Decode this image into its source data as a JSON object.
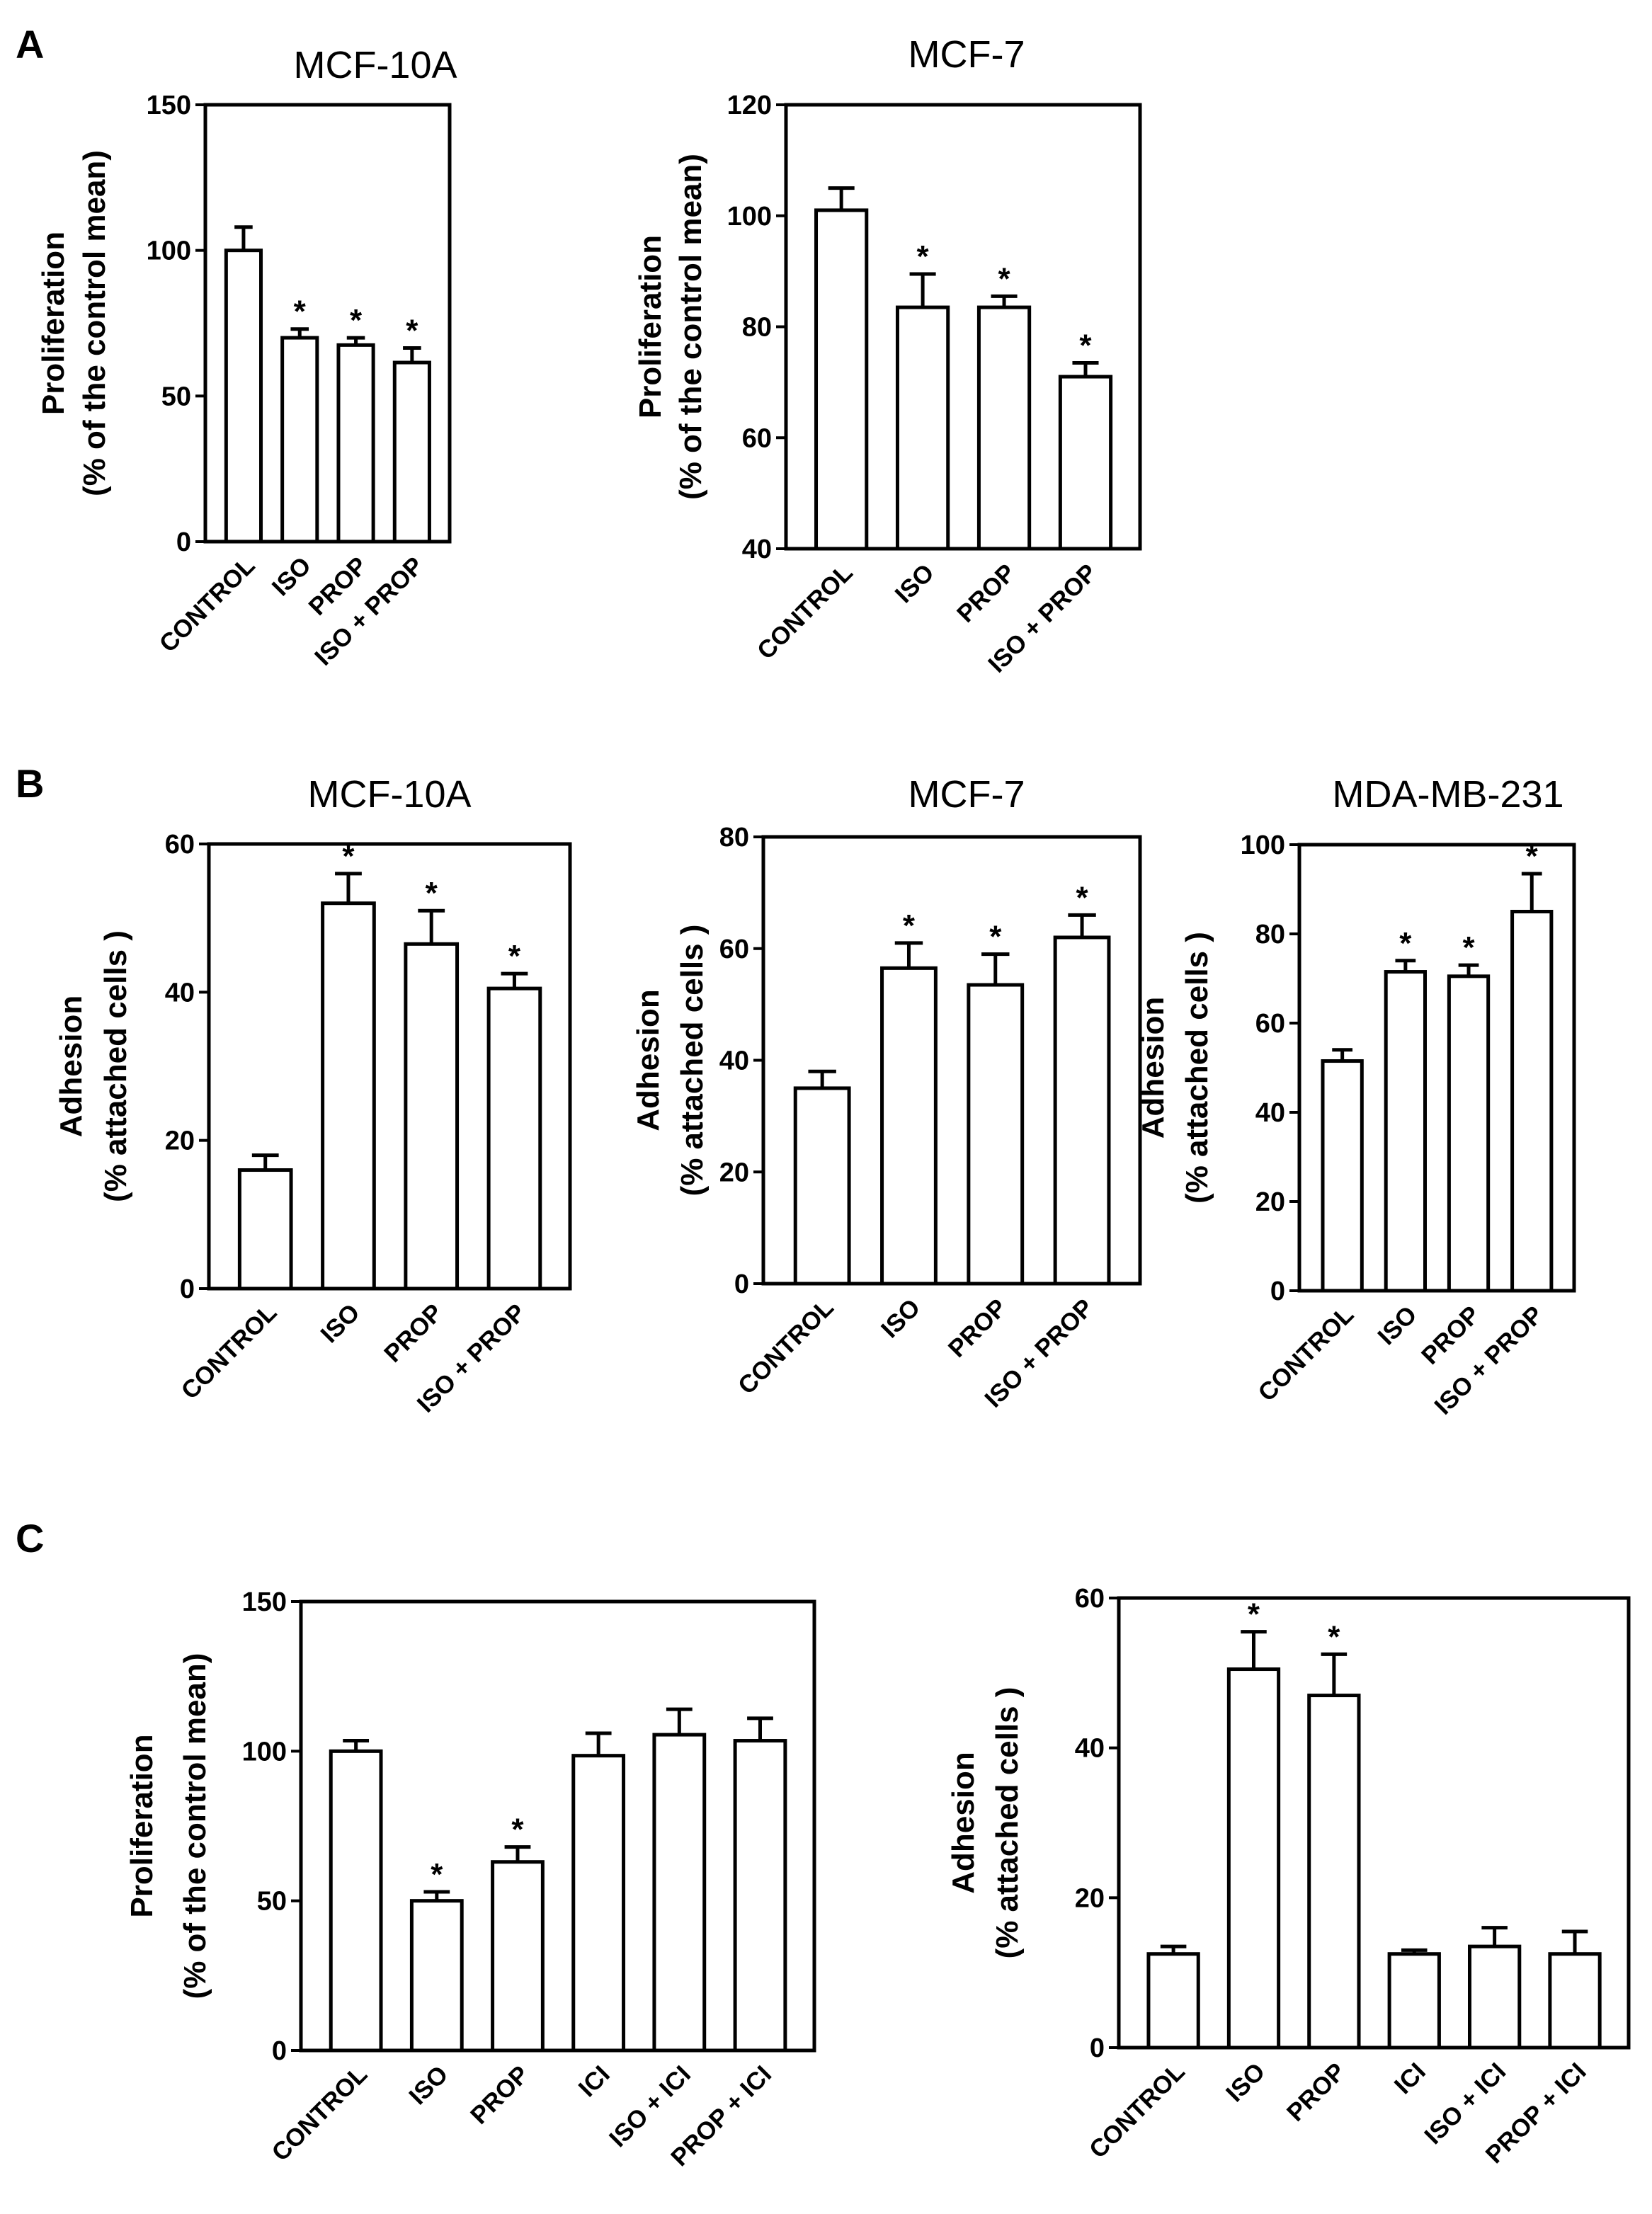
{
  "panels": [
    {
      "label": "A"
    },
    {
      "label": "B"
    },
    {
      "label": "C"
    }
  ],
  "chart_data": [
    {
      "type": "bar",
      "panel": "A",
      "title": "MCF-10A",
      "ylabel": [
        "Proliferation",
        "(% of the control mean)"
      ],
      "categories": [
        "CONTROL",
        "ISO",
        "PROP",
        "ISO + PROP"
      ],
      "values": [
        100,
        70,
        67.5,
        61.5
      ],
      "errors": [
        8,
        3,
        2.5,
        5
      ],
      "significant": [
        false,
        true,
        true,
        true
      ],
      "ylim": [
        0,
        150
      ],
      "yticks": [
        0,
        50,
        100,
        150
      ]
    },
    {
      "type": "bar",
      "panel": "A",
      "title": "MCF-7",
      "ylabel": [
        "Proliferation",
        "(% of the control mean)"
      ],
      "categories": [
        "CONTROL",
        "ISO",
        "PROP",
        "ISO + PROP"
      ],
      "values": [
        101,
        83.5,
        83.5,
        71
      ],
      "errors": [
        4,
        6,
        2,
        2.5
      ],
      "significant": [
        false,
        true,
        true,
        true
      ],
      "ylim": [
        40,
        120
      ],
      "yticks": [
        40,
        60,
        80,
        100,
        120
      ]
    },
    {
      "type": "bar",
      "panel": "B",
      "title": "MCF-10A",
      "ylabel": [
        "Adhesion",
        "(% attached cells )"
      ],
      "categories": [
        "CONTROL",
        "ISO",
        "PROP",
        "ISO + PROP"
      ],
      "values": [
        16,
        52,
        46.5,
        40.5
      ],
      "errors": [
        2,
        4,
        4.5,
        2
      ],
      "significant": [
        false,
        true,
        true,
        true
      ],
      "ylim": [
        0,
        60
      ],
      "yticks": [
        0,
        20,
        40,
        60
      ]
    },
    {
      "type": "bar",
      "panel": "B",
      "title": "MCF-7",
      "ylabel": [
        "Adhesion",
        "(% attached cells )"
      ],
      "categories": [
        "CONTROL",
        "ISO",
        "PROP",
        "ISO + PROP"
      ],
      "values": [
        35,
        56.5,
        53.5,
        62
      ],
      "errors": [
        3,
        4.5,
        5.5,
        4
      ],
      "significant": [
        false,
        true,
        true,
        true
      ],
      "ylim": [
        0,
        80
      ],
      "yticks": [
        0,
        20,
        40,
        60,
        80
      ]
    },
    {
      "type": "bar",
      "panel": "B",
      "title": "MDA-MB-231",
      "ylabel": [
        "Adhesion",
        "(% attached cells )"
      ],
      "categories": [
        "CONTROL",
        "ISO",
        "PROP",
        "ISO + PROP"
      ],
      "values": [
        51.5,
        71.5,
        70.5,
        85
      ],
      "errors": [
        2.5,
        2.5,
        2.5,
        8.5
      ],
      "significant": [
        false,
        true,
        true,
        true
      ],
      "ylim": [
        0,
        100
      ],
      "yticks": [
        0,
        20,
        40,
        60,
        80,
        100
      ]
    },
    {
      "type": "bar",
      "panel": "C",
      "title": "",
      "ylabel": [
        "Proliferation",
        "(% of the control mean)"
      ],
      "categories": [
        "CONTROL",
        "ISO",
        "PROP",
        "ICI",
        "ISO + ICI",
        "PROP + ICI"
      ],
      "values": [
        100,
        50,
        63,
        98.5,
        105.5,
        103.5
      ],
      "errors": [
        3.5,
        3,
        5,
        7.5,
        8.5,
        7.5
      ],
      "significant": [
        false,
        true,
        true,
        false,
        false,
        false
      ],
      "ylim": [
        0,
        150
      ],
      "yticks": [
        0,
        50,
        100,
        150
      ]
    },
    {
      "type": "bar",
      "panel": "C",
      "title": "",
      "ylabel": [
        "Adhesion",
        "(% attached cells )"
      ],
      "categories": [
        "CONTROL",
        "ISO",
        "PROP",
        "ICI",
        "ISO + ICI",
        "PROP + ICI"
      ],
      "values": [
        12.5,
        50.5,
        47,
        12.5,
        13.5,
        12.5
      ],
      "errors": [
        1,
        5,
        5.5,
        0.5,
        2.5,
        3
      ],
      "significant": [
        false,
        true,
        true,
        false,
        false,
        false
      ],
      "ylim": [
        0,
        60
      ],
      "yticks": [
        0,
        20,
        40,
        60
      ]
    }
  ]
}
